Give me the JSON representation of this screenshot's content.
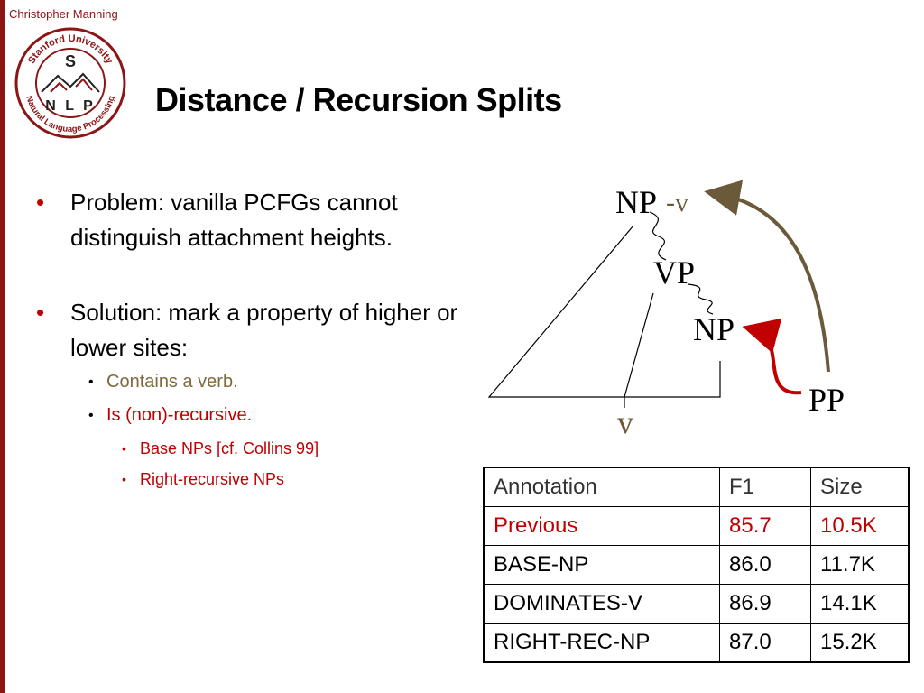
{
  "header": {
    "author": "Christopher Manning",
    "title": "Distance / Recursion Splits"
  },
  "logo": {
    "ring_text": "Stanford University · Natural Language Processing",
    "letter_top": "S",
    "letters_bottom": "N L P"
  },
  "bullets": {
    "problem": "Problem: vanilla PCFGs cannot distinguish attachment heights.",
    "solution": "Solution: mark a property of higher or lower sites:",
    "sub1": "Contains a verb.",
    "sub2": "Is (non)-recursive.",
    "sub2a": "Base NPs [cf. Collins 99]",
    "sub2b": "Right-recursive NPs"
  },
  "tree": {
    "np_top": "NP",
    "np_top_suffix": "-v",
    "vp": "VP",
    "np_low": "NP",
    "pp": "PP",
    "v": "v"
  },
  "table": {
    "header": [
      "Annotation",
      "F1",
      "Size"
    ],
    "rows": [
      [
        "Previous",
        "85.7",
        "10.5K"
      ],
      [
        "BASE-NP",
        "86.0",
        "11.7K"
      ],
      [
        "DOMINATES-V",
        "86.9",
        "14.1K"
      ],
      [
        "RIGHT-REC-NP",
        "87.0",
        "15.2K"
      ]
    ]
  },
  "colors": {
    "accent_red": "#c00000",
    "stanford_red": "#8c1515",
    "olive": "#7f6a3f",
    "arrow_brown": "#6b5a3a"
  }
}
